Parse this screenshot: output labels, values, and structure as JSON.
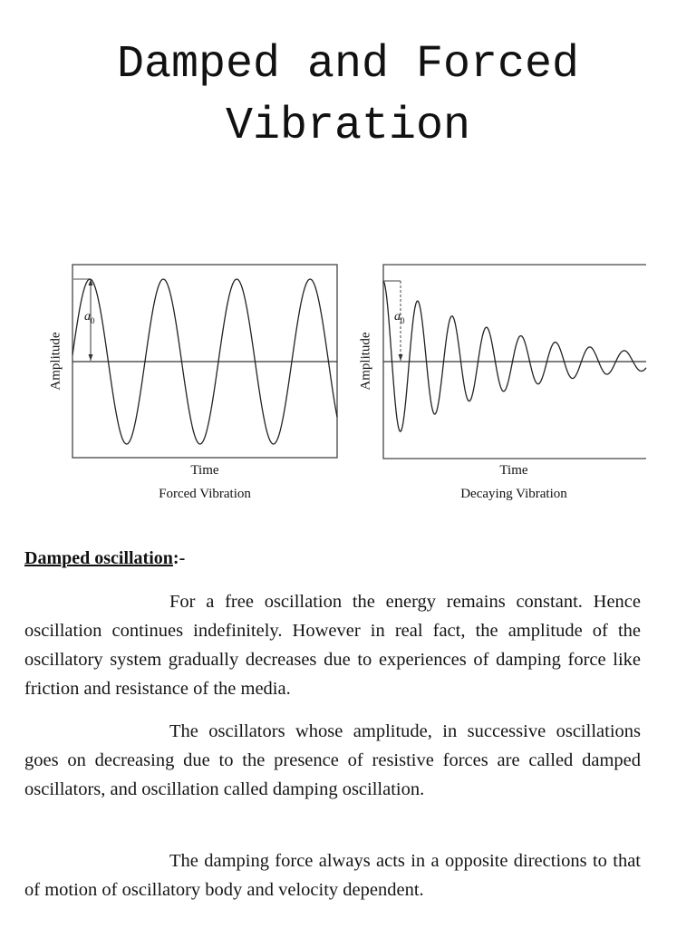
{
  "document": {
    "title_line1": "Damped and Forced",
    "title_line2": "Vibration",
    "section_heading": "Damped oscillation",
    "section_heading_suffix": ":-",
    "paragraphs": [
      "For a free oscillation the energy remains constant. Hence oscillation continues indefinitely. However in real fact, the amplitude of the oscillatory system gradually decreases due to experiences of damping force like friction and resistance of the media.",
      "The oscillators whose amplitude, in successive oscillations goes on decreasing due to the presence of resistive forces are called damped oscillators, and oscillation called damping oscillation.",
      "The damping force always acts in a opposite directions to that of motion of oscillatory body and velocity dependent."
    ]
  },
  "figures": [
    {
      "xlabel": "Time",
      "ylabel": "Amplitude",
      "caption": "Forced Vibration",
      "annotation": "a",
      "annotation_sub": "0"
    },
    {
      "xlabel": "Time",
      "ylabel": "Amplitude",
      "caption": "Decaying Vibration",
      "annotation": "a",
      "annotation_sub": "0"
    }
  ],
  "chart_data": [
    {
      "type": "line",
      "title": "Forced Vibration",
      "xlabel": "Time",
      "ylabel": "Amplitude",
      "description": "Constant-amplitude sinusoid, about 3.5 cycles, amplitude a0",
      "amplitude": 1.0,
      "cycles": 3.5,
      "grid": false
    },
    {
      "type": "line",
      "title": "Decaying Vibration",
      "xlabel": "Time",
      "ylabel": "Amplitude",
      "description": "Exponentially decaying sinusoid starting at amplitude a0, about 7.5 cycles",
      "peak_amplitudes": [
        1.0,
        0.7,
        0.5,
        0.36,
        0.25,
        0.18,
        0.15,
        0.12
      ],
      "grid": false
    }
  ]
}
